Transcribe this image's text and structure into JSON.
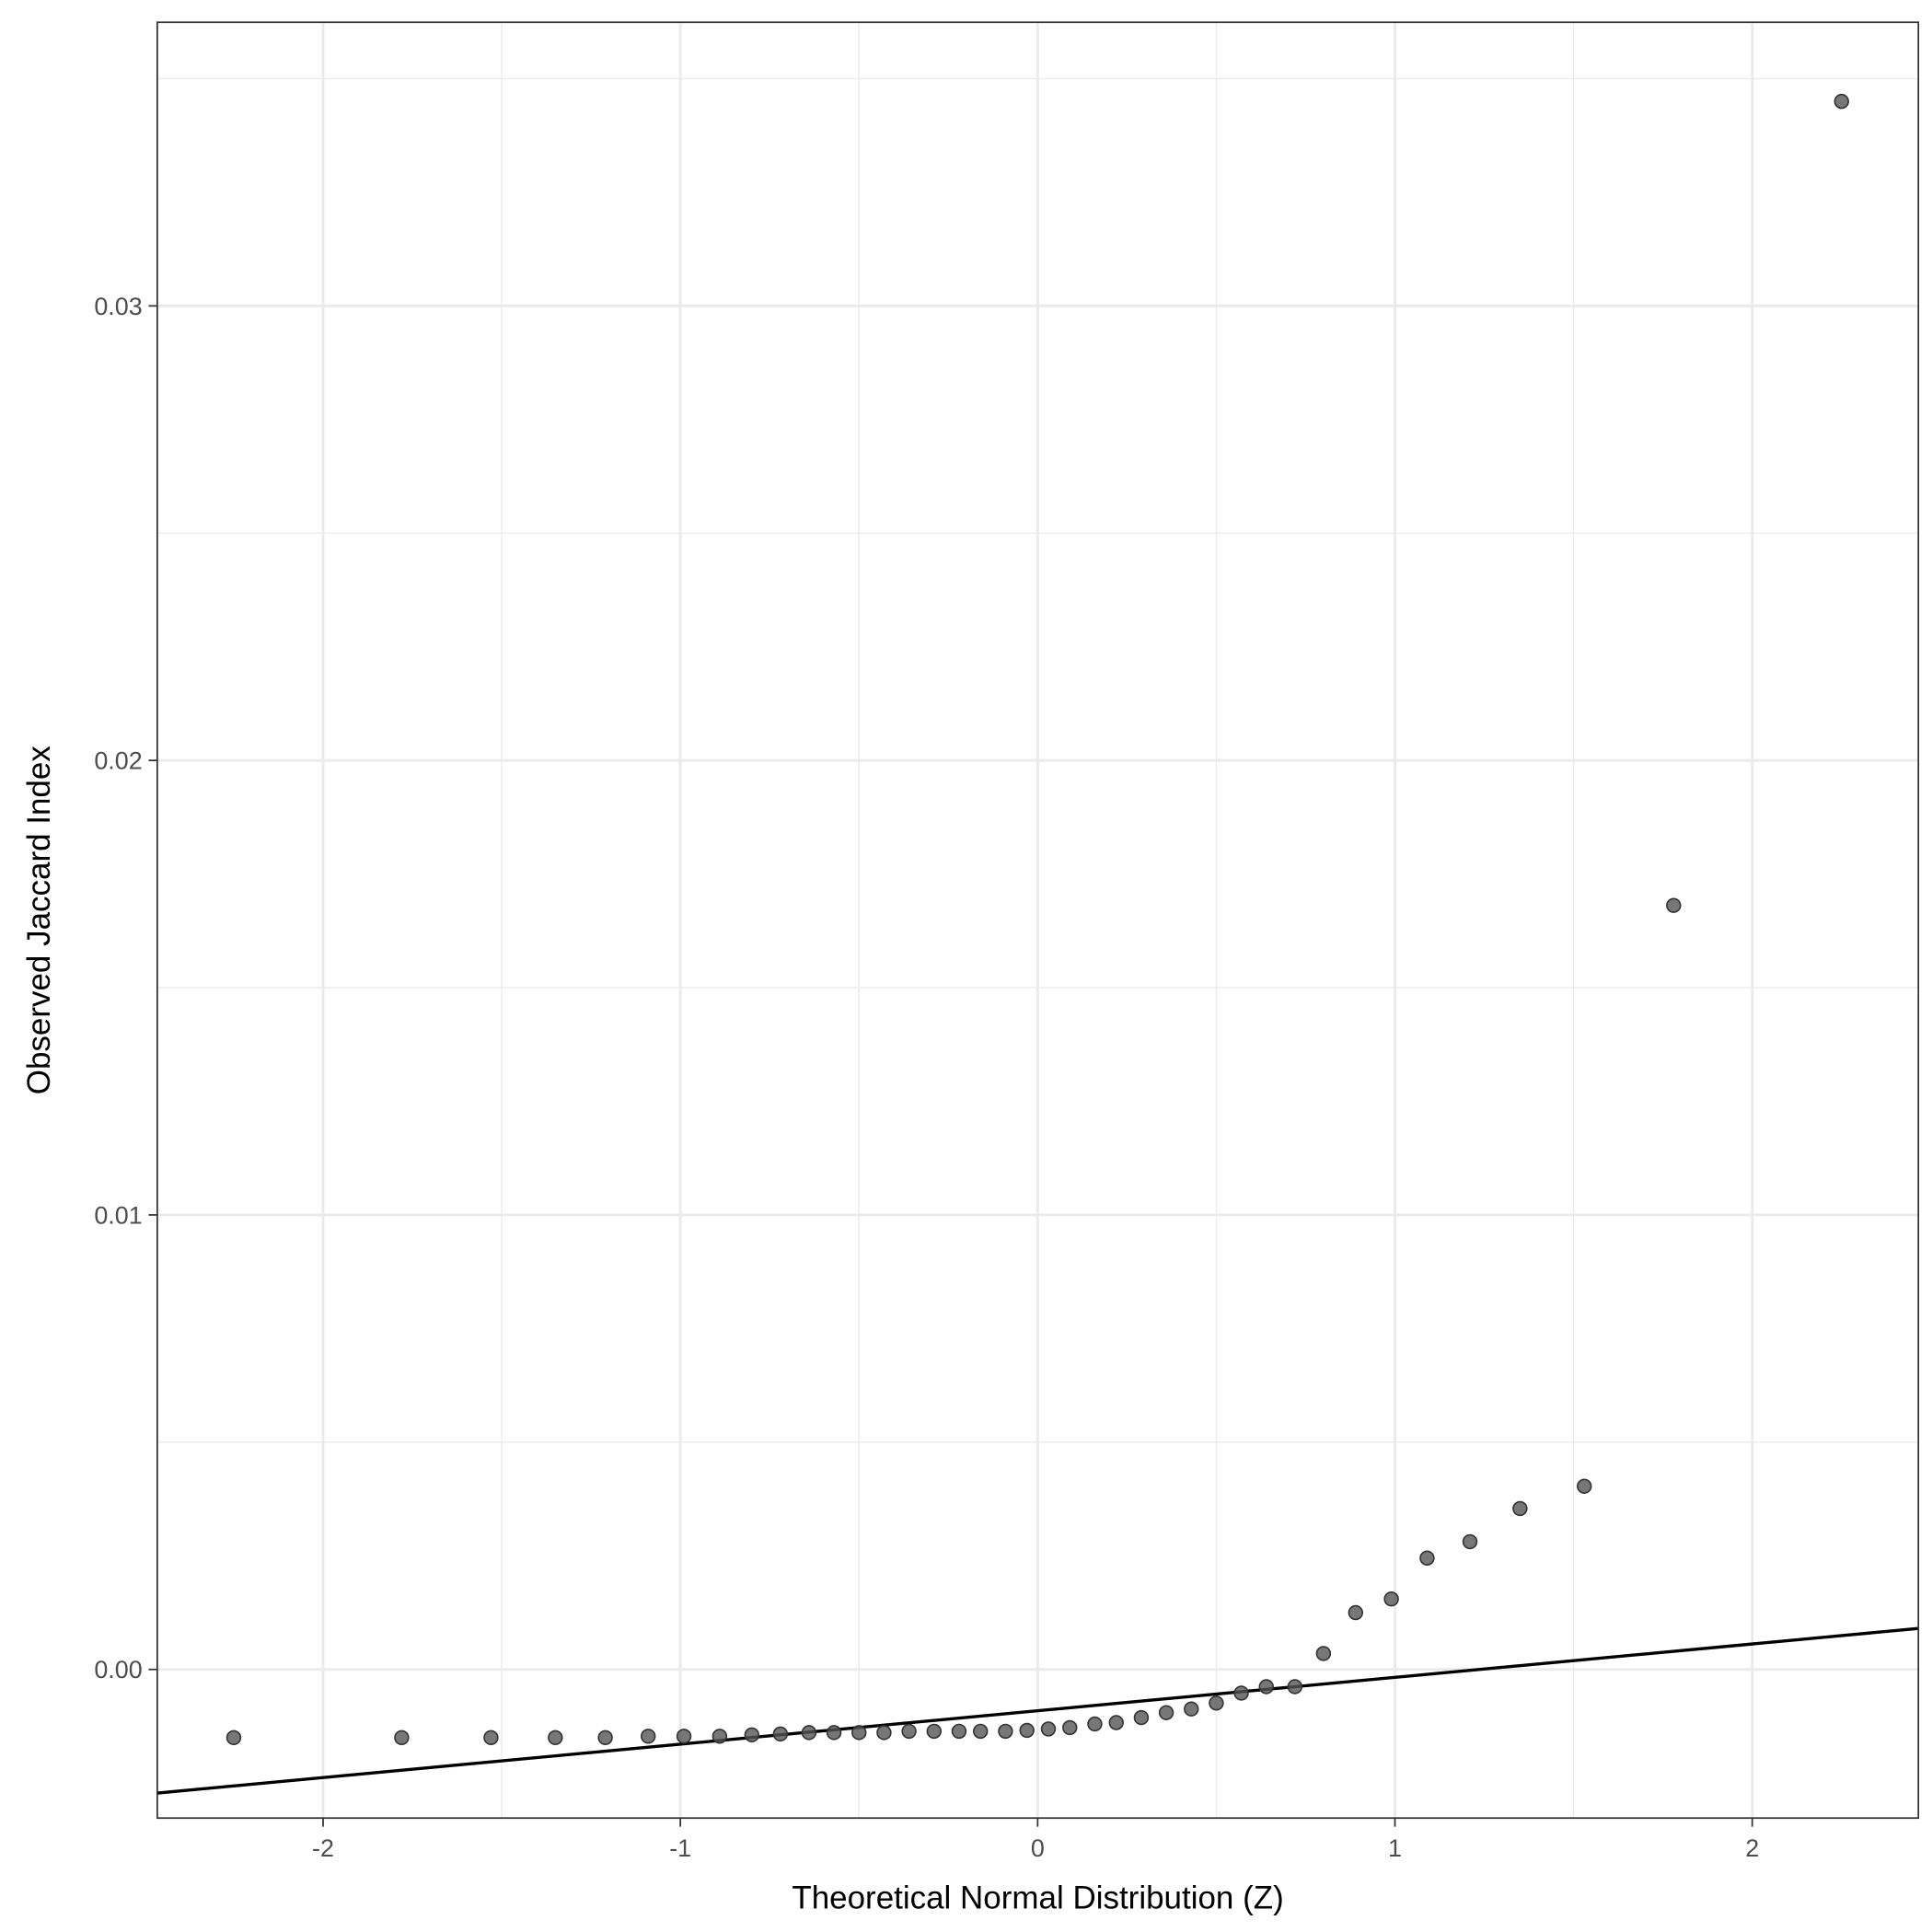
{
  "chart_data": {
    "type": "scatter",
    "title": "",
    "xlabel": "Theoretical Normal Distribution (Z)",
    "ylabel": "Observed Jaccard Index",
    "xlim": [
      -2.464,
      2.465
    ],
    "ylim": [
      -0.00327,
      0.03624
    ],
    "xticks": [
      -2,
      -1,
      0,
      1,
      2
    ],
    "xtick_labels": [
      "-2",
      "-1",
      "0",
      "1",
      "2"
    ],
    "yticks": [
      0,
      0.01,
      0.02,
      0.03
    ],
    "ytick_labels": [
      "0.00",
      "0.01",
      "0.02",
      "0.03"
    ],
    "grid": true,
    "point_color": "#555555",
    "line_color": "#000000",
    "reference_line": {
      "intercept": -0.00091,
      "slope": 0.000735
    },
    "points": {
      "x": [
        -2.25,
        -1.78,
        -1.53,
        -1.35,
        -1.21,
        -1.09,
        -0.99,
        -0.89,
        -0.8,
        -0.72,
        -0.64,
        -0.57,
        -0.5,
        -0.43,
        -0.36,
        -0.29,
        -0.22,
        -0.16,
        -0.09,
        -0.03,
        0.03,
        0.09,
        0.16,
        0.22,
        0.29,
        0.36,
        0.43,
        0.5,
        0.57,
        0.64,
        0.72,
        0.8,
        0.89,
        0.99,
        1.09,
        1.21,
        1.35,
        1.53,
        1.78,
        2.25
      ],
      "y": [
        -0.0015,
        -0.0015,
        -0.0015,
        -0.0015,
        -0.0015,
        -0.00147,
        -0.00147,
        -0.00147,
        -0.00144,
        -0.00142,
        -0.00139,
        -0.00139,
        -0.00139,
        -0.00139,
        -0.00136,
        -0.00136,
        -0.00136,
        -0.00136,
        -0.00136,
        -0.00134,
        -0.00131,
        -0.00128,
        -0.0012,
        -0.00117,
        -0.00106,
        -0.00095,
        -0.00087,
        -0.00074,
        -0.00052,
        -0.00038,
        -0.00038,
        0.00035,
        0.00125,
        0.00155,
        0.00245,
        0.00281,
        0.00354,
        0.00403,
        0.01681,
        0.0345
      ]
    }
  }
}
